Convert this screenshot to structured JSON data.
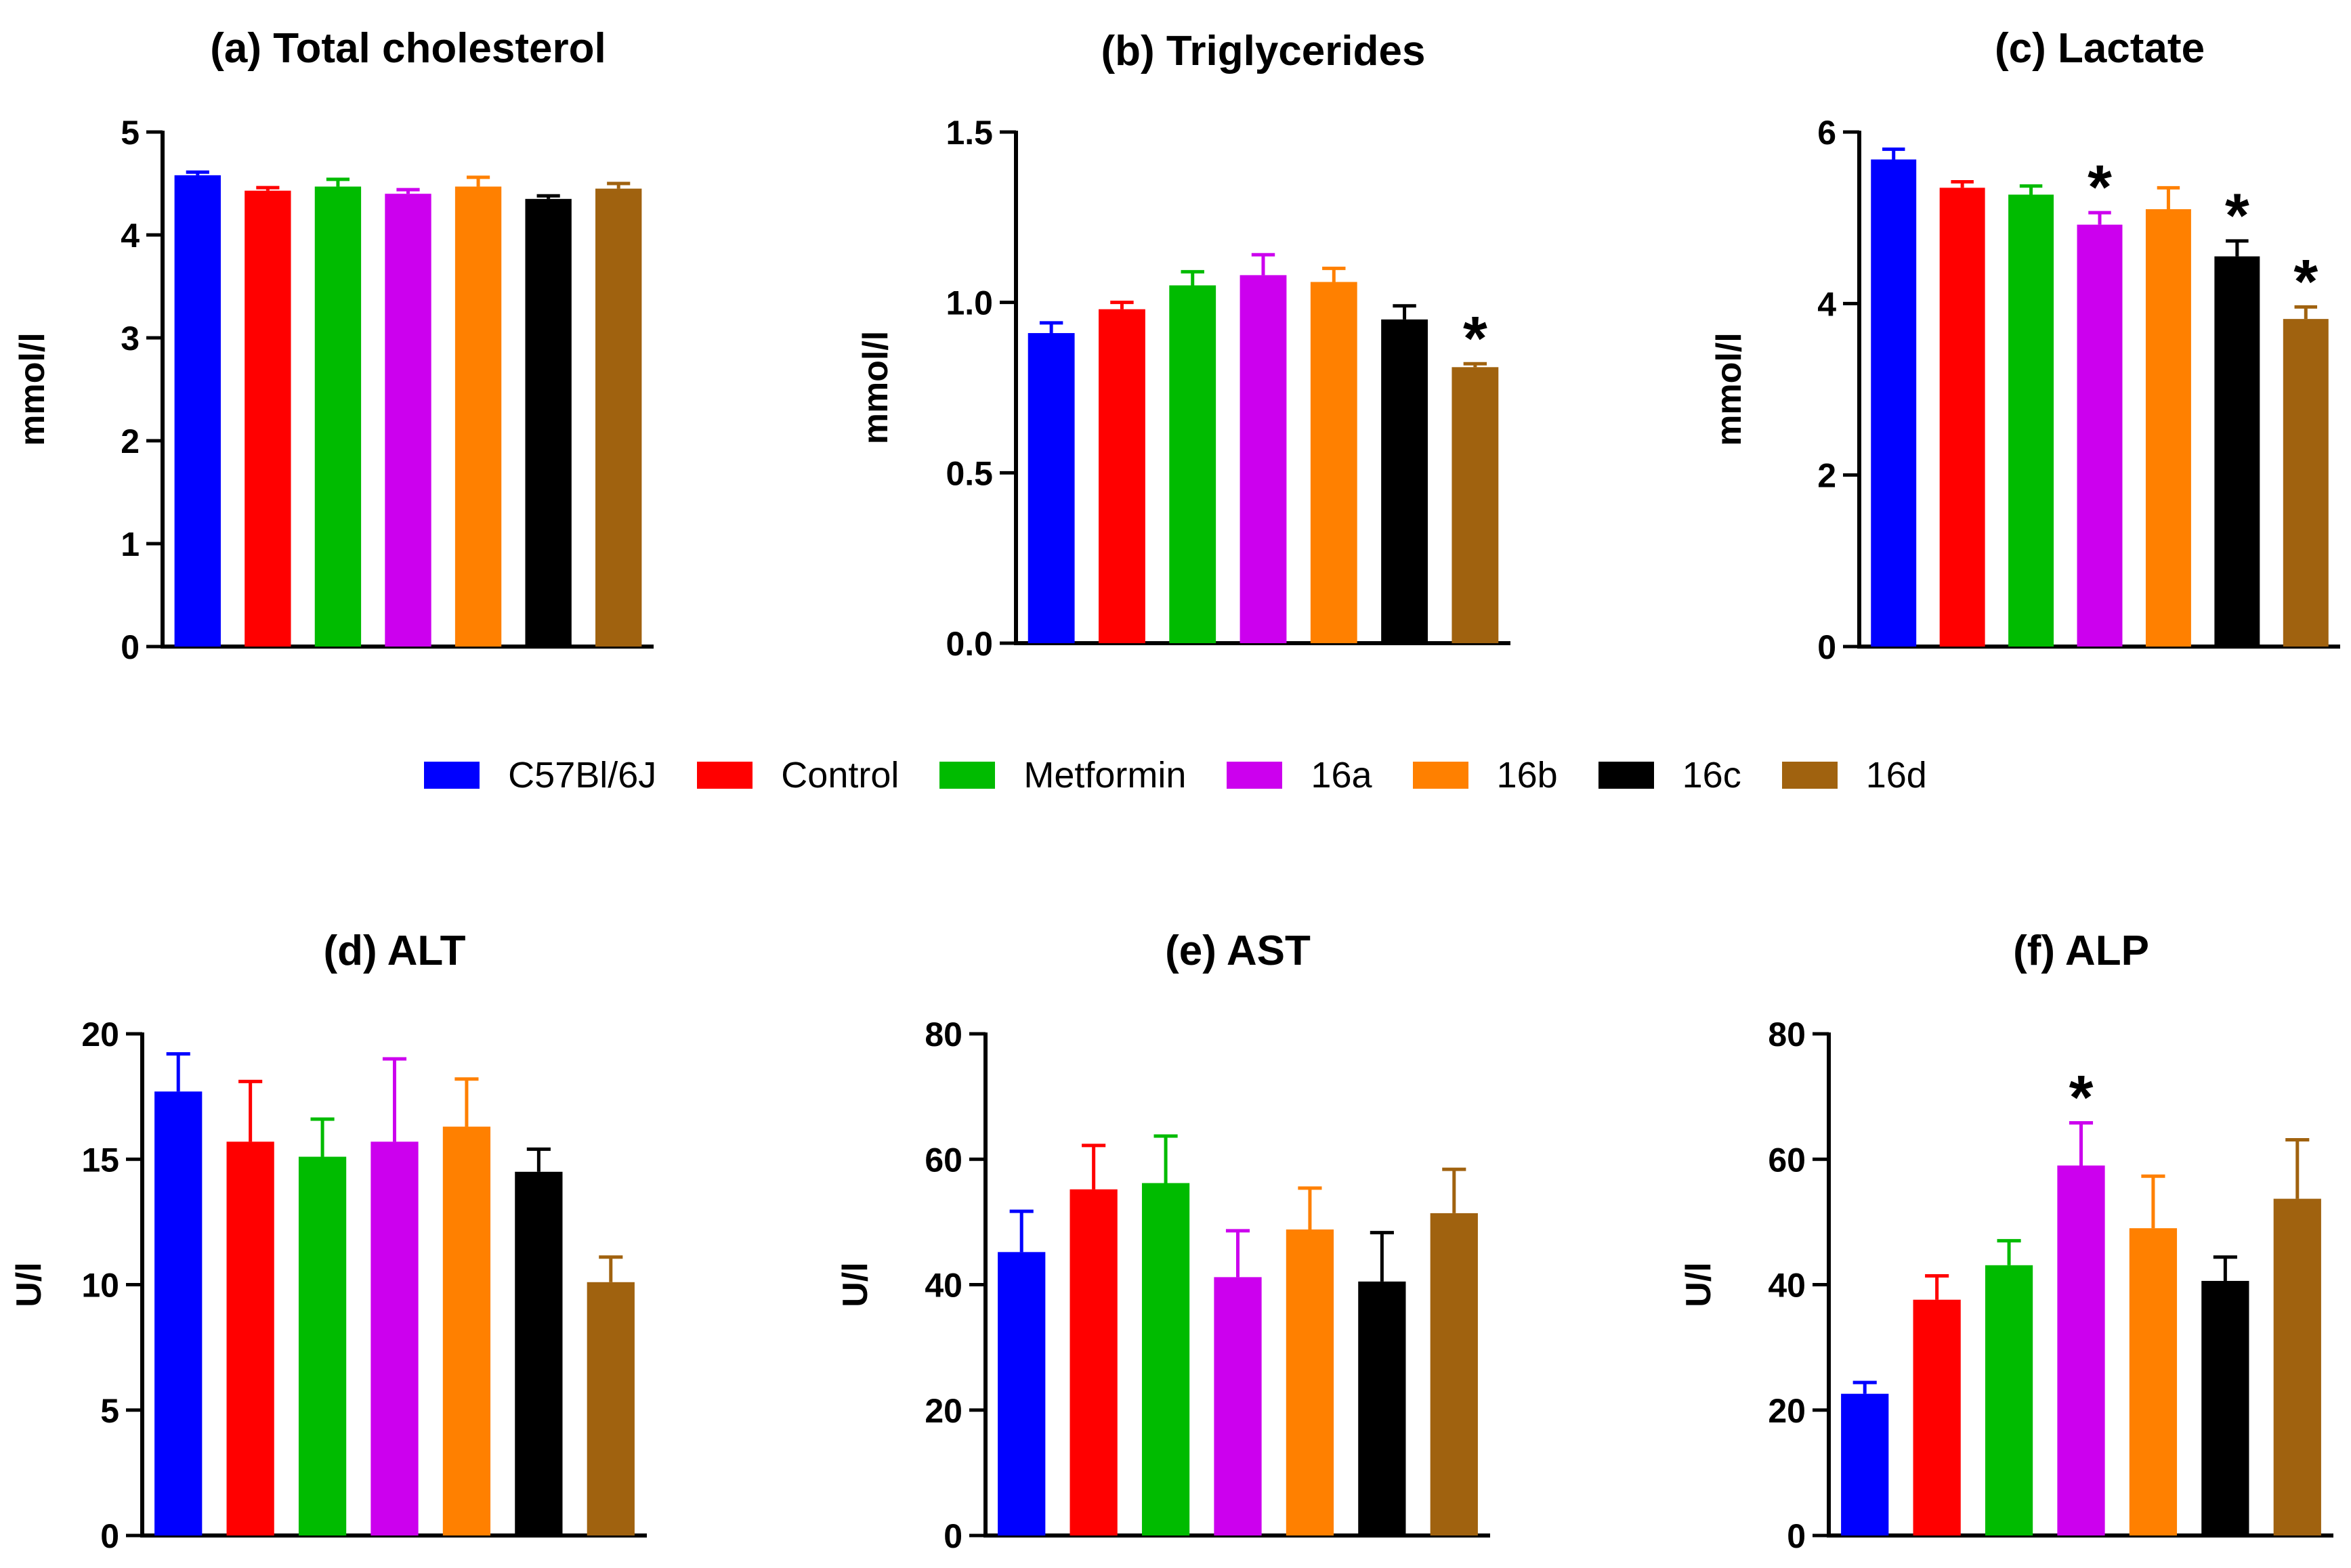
{
  "colors": [
    "#0000ff",
    "#ff0000",
    "#00bb00",
    "#cc00ee",
    "#ff8000",
    "#000000",
    "#a0620f"
  ],
  "legend": [
    "C57Bl/6J",
    "Control",
    "Metformin",
    "16a",
    "16b",
    "16c",
    "16d"
  ],
  "chart_data": [
    {
      "type": "bar",
      "title": "(a) Total cholesterol",
      "ylabel": "mmol/l",
      "ylim": [
        0,
        5
      ],
      "yticks": [
        "0",
        "1",
        "2",
        "3",
        "4",
        "5"
      ],
      "categories": [
        "C57Bl/6J",
        "Control",
        "Metformin",
        "16a",
        "16b",
        "16c",
        "16d"
      ],
      "values": [
        4.58,
        4.43,
        4.47,
        4.4,
        4.47,
        4.35,
        4.45
      ],
      "errors": [
        0.03,
        0.03,
        0.07,
        0.04,
        0.09,
        0.03,
        0.05
      ],
      "significance": [
        "",
        "",
        "",
        "",
        "",
        "",
        ""
      ]
    },
    {
      "type": "bar",
      "title": "(b) Triglycerides",
      "ylabel": "mmol/l",
      "ylim": [
        0,
        1.5
      ],
      "yticks": [
        "0.0",
        "0.5",
        "1.0",
        "1.5"
      ],
      "categories": [
        "C57Bl/6J",
        "Control",
        "Metformin",
        "16a",
        "16b",
        "16c",
        "16d"
      ],
      "values": [
        0.91,
        0.98,
        1.05,
        1.08,
        1.06,
        0.95,
        0.81
      ],
      "errors": [
        0.03,
        0.02,
        0.04,
        0.06,
        0.04,
        0.04,
        0.01
      ],
      "significance": [
        "",
        "",
        "",
        "",
        "",
        "",
        "*"
      ]
    },
    {
      "type": "bar",
      "title": "(c) Lactate",
      "ylabel": "mmol/l",
      "ylim": [
        0,
        6
      ],
      "yticks": [
        "0",
        "2",
        "4",
        "6"
      ],
      "categories": [
        "C57Bl/6J",
        "Control",
        "Metformin",
        "16a",
        "16b",
        "16c",
        "16d"
      ],
      "values": [
        5.68,
        5.35,
        5.27,
        4.92,
        5.1,
        4.55,
        3.82
      ],
      "errors": [
        0.12,
        0.07,
        0.1,
        0.14,
        0.25,
        0.18,
        0.14
      ],
      "significance": [
        "",
        "",
        "",
        "*",
        "",
        "*",
        "*"
      ]
    },
    {
      "type": "bar",
      "title": "(d) ALT",
      "ylabel": "U/l",
      "ylim": [
        0,
        20
      ],
      "yticks": [
        "0",
        "5",
        "10",
        "15",
        "20"
      ],
      "categories": [
        "C57Bl/6J",
        "Control",
        "Metformin",
        "16a",
        "16b",
        "16c",
        "16d"
      ],
      "values": [
        17.7,
        15.7,
        15.1,
        15.7,
        16.3,
        14.5,
        10.1
      ],
      "errors": [
        1.5,
        2.4,
        1.5,
        3.3,
        1.9,
        0.9,
        1.0
      ],
      "significance": [
        "",
        "",
        "",
        "",
        "",
        "",
        ""
      ]
    },
    {
      "type": "bar",
      "title": "(e) AST",
      "ylabel": "U/l",
      "ylim": [
        0,
        80
      ],
      "yticks": [
        "0",
        "20",
        "40",
        "60",
        "80"
      ],
      "categories": [
        "C57Bl/6J",
        "Control",
        "Metformin",
        "16a",
        "16b",
        "16c",
        "16d"
      ],
      "values": [
        45.2,
        55.2,
        56.2,
        41.2,
        48.8,
        40.5,
        51.4
      ],
      "errors": [
        6.5,
        7.0,
        7.5,
        7.4,
        6.6,
        7.8,
        7.0
      ],
      "significance": [
        "",
        "",
        "",
        "",
        "",
        "",
        ""
      ]
    },
    {
      "type": "bar",
      "title": "(f) ALP",
      "ylabel": "U/l",
      "ylim": [
        0,
        80
      ],
      "yticks": [
        "0",
        "20",
        "40",
        "60",
        "80"
      ],
      "categories": [
        "C57Bl/6J",
        "Control",
        "Metformin",
        "16a",
        "16b",
        "16c",
        "16d"
      ],
      "values": [
        22.6,
        37.6,
        43.1,
        59.0,
        49.0,
        40.6,
        53.7
      ],
      "errors": [
        1.8,
        3.8,
        3.9,
        6.8,
        8.3,
        3.8,
        9.4
      ],
      "significance": [
        "",
        "",
        "",
        "*",
        "",
        "",
        ""
      ]
    }
  ]
}
